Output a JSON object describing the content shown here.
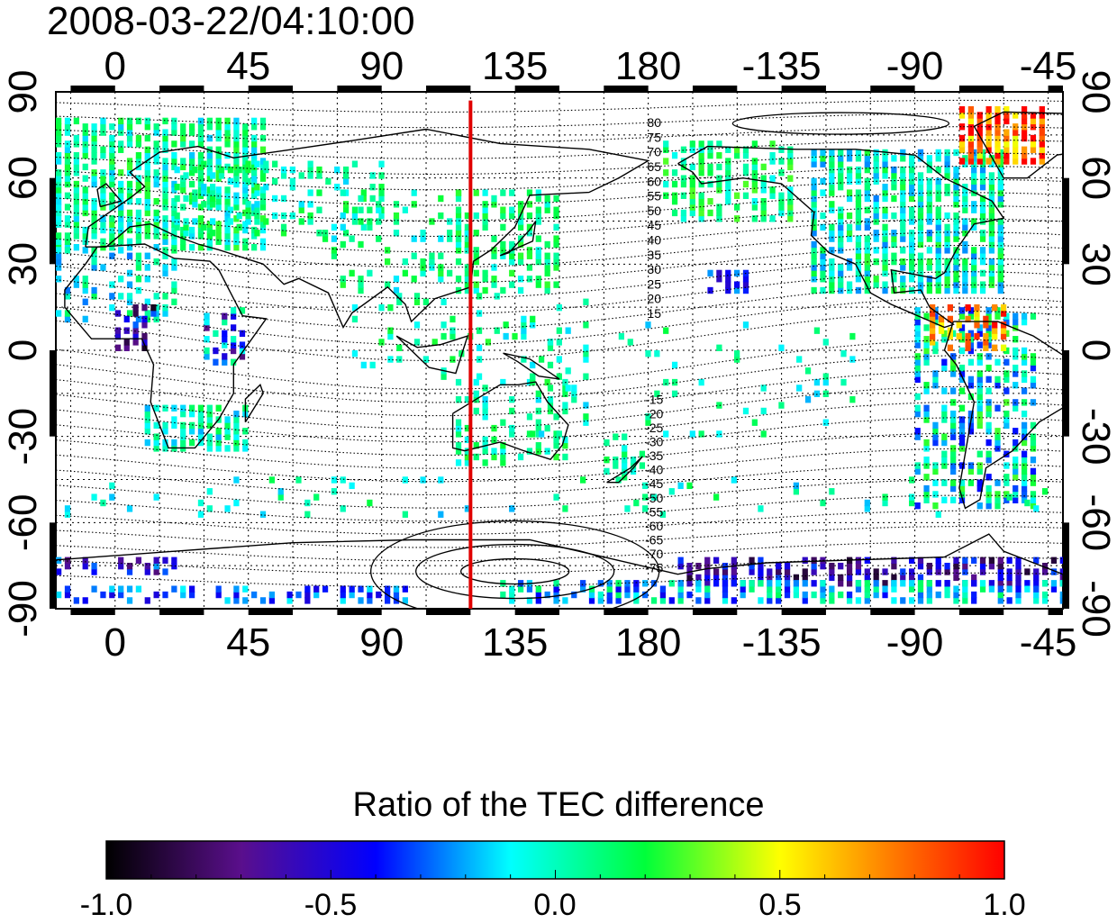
{
  "title": "2008-03-22/04:10:00",
  "map": {
    "lon_ticks_top": [
      "0",
      "45",
      "90",
      "135",
      "180",
      "-135",
      "-90",
      "-45"
    ],
    "lon_ticks_bottom": [
      "0",
      "45",
      "90",
      "135",
      "180",
      "-135",
      "-90",
      "-45"
    ],
    "lat_ticks_left": [
      "90",
      "60",
      "30",
      "0",
      "-30",
      "-60",
      "-90"
    ],
    "lat_ticks_right": [
      "90",
      "60",
      "30",
      "0",
      "-30",
      "-60",
      "-90"
    ],
    "lon_range": [
      -20,
      320
    ],
    "lat_range": [
      -90,
      90
    ],
    "grid": true,
    "red_meridian_lon": 120,
    "magnetic_lat_labels_north": [
      "80",
      "75",
      "70",
      "65",
      "60",
      "55",
      "50",
      "45",
      "40",
      "35",
      "30",
      "25",
      "20",
      "15"
    ],
    "magnetic_lat_labels_south": [
      "-15",
      "-20",
      "-25",
      "-30",
      "-35",
      "-40",
      "-45",
      "-50",
      "-55",
      "-60",
      "-65",
      "-70",
      "-75"
    ]
  },
  "colorbar": {
    "title": "Ratio of the TEC difference",
    "range": [
      -1.0,
      1.0
    ],
    "tick_labels": [
      "-1.0",
      "-0.5",
      "0.0",
      "0.5",
      "1.0"
    ],
    "colors": [
      "#000000",
      "#5a0f8c",
      "#0000ff",
      "#00ffff",
      "#00ff3a",
      "#ffff00",
      "#ff8000",
      "#ff0000"
    ]
  }
}
